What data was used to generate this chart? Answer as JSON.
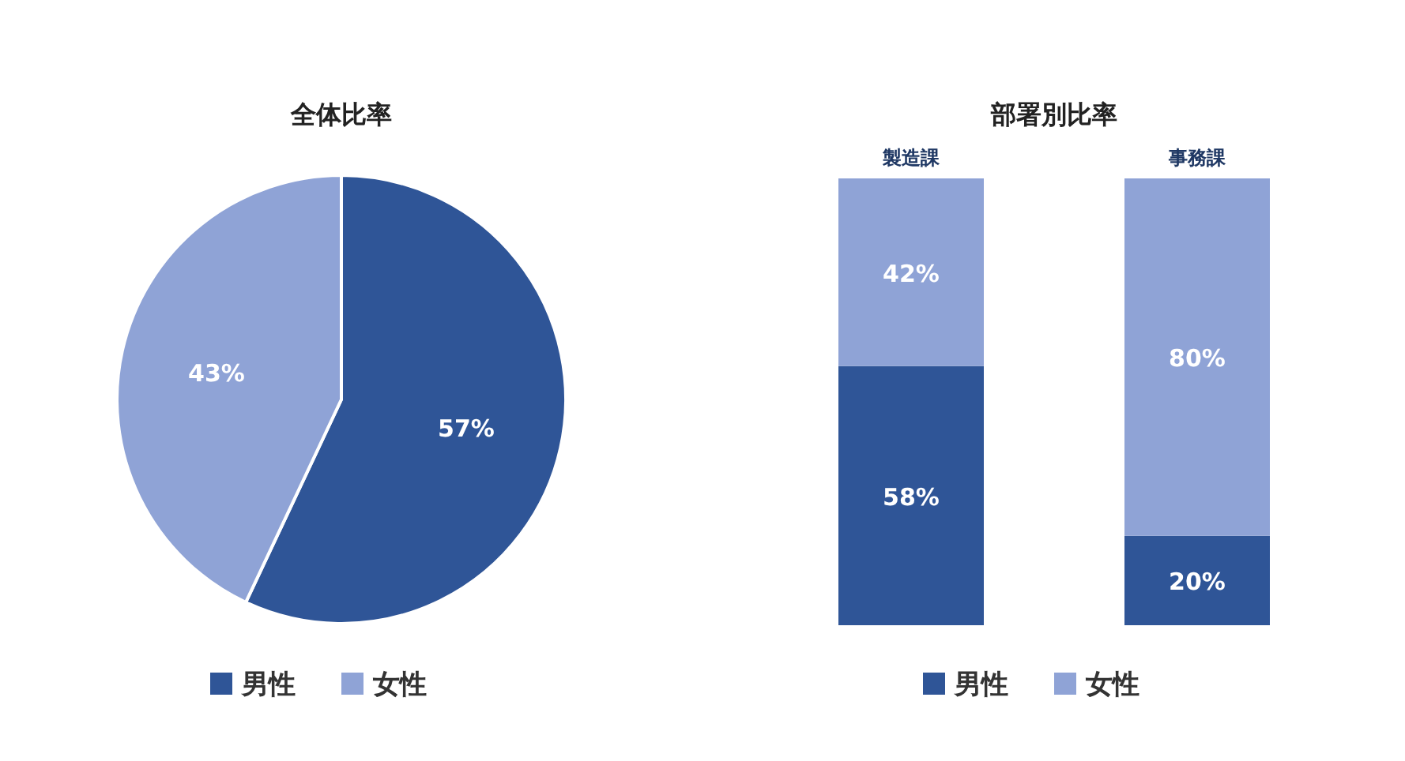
{
  "chart_data": [
    {
      "type": "pie",
      "title": "全体比率",
      "categories": [
        "男性",
        "女性"
      ],
      "values": [
        57,
        43
      ],
      "colors": [
        "#2f5597",
        "#8fa3d6"
      ],
      "value_labels": [
        "57%",
        "43%"
      ],
      "legend": "bottom"
    },
    {
      "type": "bar",
      "stacked": true,
      "title": "部署別比率",
      "categories": [
        "製造課",
        "事務課"
      ],
      "legend": "bottom",
      "series": [
        {
          "name": "男性",
          "color": "#2f5597",
          "values": [
            58,
            20
          ],
          "value_labels": [
            "58%",
            "20%"
          ]
        },
        {
          "name": "女性",
          "color": "#8fa3d6",
          "values": [
            42,
            80
          ],
          "value_labels": [
            "42%",
            "80%"
          ]
        }
      ]
    }
  ]
}
